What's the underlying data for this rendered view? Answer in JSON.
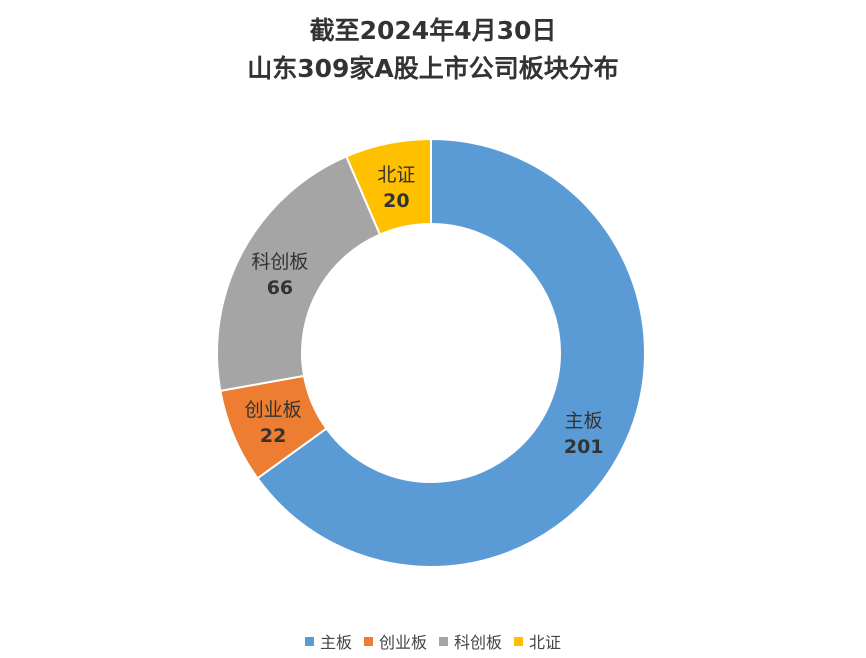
{
  "chart_data": {
    "type": "pie",
    "style": "donut",
    "title_lines": [
      "截至2024年4月30日",
      "山东309家A股上市公司板块分布"
    ],
    "categories": [
      "主板",
      "创业板",
      "科创板",
      "北证"
    ],
    "values": [
      201,
      22,
      66,
      20
    ],
    "colors": [
      "#5B9BD5",
      "#ED7D31",
      "#A5A5A5",
      "#FFC000"
    ],
    "legend_position": "bottom",
    "data_labels": "category and value inside slice"
  }
}
